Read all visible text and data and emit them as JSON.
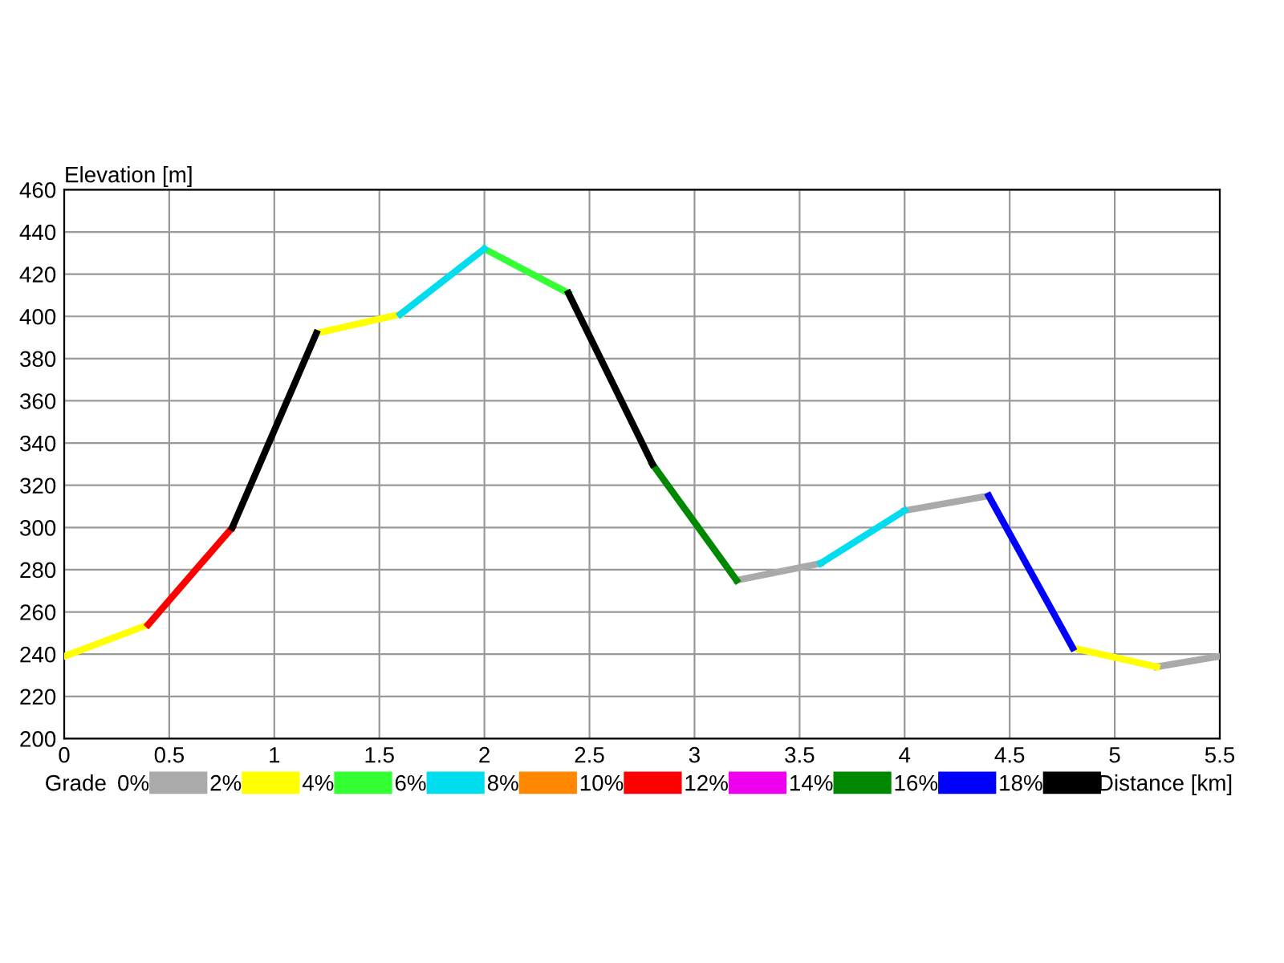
{
  "chart_data": {
    "type": "line",
    "xlabel": "Distance [km]",
    "ylabel": "Elevation [m]",
    "legend_title": "Grade",
    "xlim": [
      0,
      5.5
    ],
    "xticks": [
      0,
      0.5,
      1,
      1.5,
      2,
      2.5,
      3,
      3.5,
      4,
      4.5,
      5,
      5.5
    ],
    "ylim": [
      200,
      460
    ],
    "yticks": [
      200,
      220,
      240,
      260,
      280,
      300,
      320,
      340,
      360,
      380,
      400,
      420,
      440,
      460
    ],
    "grid": true,
    "legend": "bottom",
    "marker": "none",
    "line_style": "solid",
    "series": [
      {
        "name": "0%",
        "color": "#aaaaaa",
        "x": [
          3.2,
          3.6,
          3.8,
          4.0,
          4.4,
          4.8,
          5.2,
          5.5
        ],
        "values": [
          275,
          283,
          null,
          308,
          315,
          null,
          234,
          239
        ]
      },
      {
        "name": "2%",
        "color": "#ffff00",
        "x": [
          0,
          0.4,
          0.8,
          1.2,
          1.6,
          3.0,
          4.8,
          5.2
        ],
        "values": [
          239,
          254,
          null,
          392,
          401,
          null,
          243,
          234
        ]
      },
      {
        "name": "4%",
        "color": "#33ff33",
        "x": [
          2.0,
          2.4
        ],
        "values": [
          432,
          411
        ]
      },
      {
        "name": "6%",
        "color": "#00ddee",
        "x": [
          1.6,
          2.0,
          2.8,
          3.6,
          4.0
        ],
        "values": [
          401,
          432,
          null,
          283,
          308
        ]
      },
      {
        "name": "8%",
        "color": "#ff8800"
      },
      {
        "name": "10%",
        "color": "#ff0000",
        "x": [
          0.4,
          0.8
        ],
        "values": [
          254,
          300
        ]
      },
      {
        "name": "12%",
        "color": "#ee00ee"
      },
      {
        "name": "14%",
        "color": "#008800",
        "x": [
          2.8,
          3.2
        ],
        "values": [
          330,
          275
        ]
      },
      {
        "name": "16%",
        "color": "#0000ff",
        "x": [
          4.4,
          4.8
        ],
        "values": [
          315,
          243
        ]
      },
      {
        "name": "18%",
        "color": "#000000",
        "x": [
          0.8,
          1.2,
          1.8,
          2.4,
          2.8
        ],
        "values": [
          300,
          392,
          null,
          411,
          330
        ]
      }
    ]
  }
}
